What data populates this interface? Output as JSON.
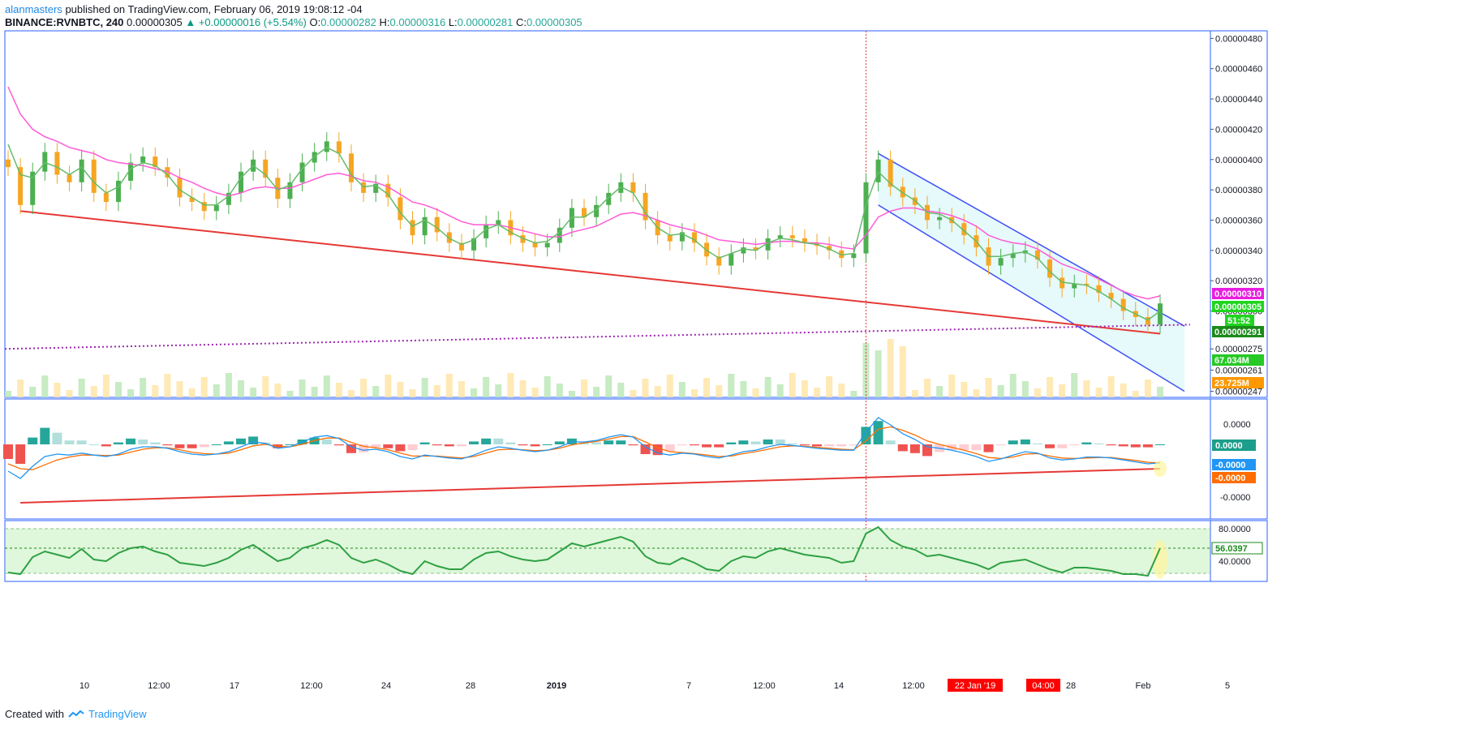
{
  "header": {
    "author": "alanmasters",
    "published_text": "published on TradingView.com, February 06, 2019 19:08:12 -04",
    "symbol": "BINANCE:RVNBTC, 240",
    "last": "0.00000305",
    "change": "▲ +0.00000016 (+5.54%)",
    "o_label": "O:",
    "o_value": "0.00000282",
    "h_label": "H:",
    "h_value": "0.00000316",
    "l_label": "L:",
    "l_value": "0.00000281",
    "c_label": "C:",
    "c_value": "0.00000305"
  },
  "footer": {
    "created_with": "Created with",
    "brand": "TradingView"
  },
  "colors": {
    "up": "#26a69a",
    "up_alt": "#4caf50",
    "down": "#f5a623",
    "ema_fast": "#66bb6a",
    "ema_slow": "#ff5bd6",
    "trendline": "#e53935",
    "channel": "#3f51f5",
    "channel_fill": "#e0f7fa",
    "support_dotted": "#9c27b0",
    "macd": "#2196f3",
    "signal": "#ff6d00",
    "rsi": "#2ea043",
    "rsi_band": "#dff7db"
  },
  "chart_data": [
    {
      "type": "line",
      "pane": "price",
      "title": "",
      "y_ticks": [
        "0.00000480",
        "0.00000460",
        "0.00000440",
        "0.00000420",
        "0.00000400",
        "0.00000380",
        "0.00000360",
        "0.00000340",
        "0.00000320",
        "0.00000300",
        "0.00000275",
        "0.00000261",
        "0.00000247"
      ],
      "x_ticks": [
        "10",
        "12:00",
        "17",
        "12:00",
        "24",
        "28",
        "2019",
        "7",
        "12:00",
        "14",
        "12:00",
        "22 Jan '19",
        "04:00",
        "28",
        "Feb",
        "5"
      ],
      "price_labels": [
        {
          "text": "0.00000310",
          "bg": "#e91ee0"
        },
        {
          "text": "0.00000305",
          "bg": "#1fd41f"
        },
        {
          "text": "51:52",
          "bg": "#1fd41f"
        },
        {
          "text": "0.00000291",
          "bg": "#1b8a1b"
        },
        {
          "text": "67.034M",
          "bg": "#26c926"
        },
        {
          "text": "23.725M",
          "bg": "#ff9800"
        }
      ],
      "ylim": [
        2.43e-06,
        4.85e-06
      ],
      "series": [
        {
          "name": "Close",
          "values": [
            3.95e-06,
            3.7e-06,
            3.92e-06,
            4.05e-06,
            3.9e-06,
            3.85e-06,
            4e-06,
            3.78e-06,
            3.72e-06,
            3.86e-06,
            3.98e-06,
            4.02e-06,
            3.95e-06,
            3.88e-06,
            3.75e-06,
            3.72e-06,
            3.66e-06,
            3.7e-06,
            3.78e-06,
            3.92e-06,
            4e-06,
            3.88e-06,
            3.74e-06,
            3.85e-06,
            3.98e-06,
            4.05e-06,
            4.12e-06,
            4.04e-06,
            3.85e-06,
            3.78e-06,
            3.84e-06,
            3.75e-06,
            3.6e-06,
            3.5e-06,
            3.62e-06,
            3.52e-06,
            3.45e-06,
            3.4e-06,
            3.48e-06,
            3.57e-06,
            3.6e-06,
            3.5e-06,
            3.45e-06,
            3.42e-06,
            3.45e-06,
            3.55e-06,
            3.68e-06,
            3.62e-06,
            3.7e-06,
            3.78e-06,
            3.85e-06,
            3.78e-06,
            3.6e-06,
            3.5e-06,
            3.46e-06,
            3.52e-06,
            3.45e-06,
            3.36e-06,
            3.3e-06,
            3.38e-06,
            3.42e-06,
            3.4e-06,
            3.48e-06,
            3.5e-06,
            3.48e-06,
            3.45e-06,
            3.43e-06,
            3.4e-06,
            3.35e-06,
            3.38e-06,
            3.85e-06,
            4e-06,
            3.82e-06,
            3.75e-06,
            3.7e-06,
            3.6e-06,
            3.62e-06,
            3.58e-06,
            3.5e-06,
            3.42e-06,
            3.3e-06,
            3.35e-06,
            3.38e-06,
            3.4e-06,
            3.34e-06,
            3.22e-06,
            3.15e-06,
            3.18e-06,
            3.17e-06,
            3.12e-06,
            3.08e-06,
            3e-06,
            2.96e-06,
            2.91e-06,
            3.05e-06
          ]
        },
        {
          "name": "EMA fast",
          "values": [
            4.1e-06,
            3.9e-06,
            3.88e-06,
            3.98e-06,
            3.95e-06,
            3.9e-06,
            3.95e-06,
            3.85e-06,
            3.78e-06,
            3.82e-06,
            3.94e-06,
            3.98e-06,
            3.96e-06,
            3.9e-06,
            3.8e-06,
            3.75e-06,
            3.7e-06,
            3.7e-06,
            3.76e-06,
            3.88e-06,
            3.96e-06,
            3.9e-06,
            3.8e-06,
            3.83e-06,
            3.94e-06,
            4.02e-06,
            4.08e-06,
            4.04e-06,
            3.9e-06,
            3.82e-06,
            3.83e-06,
            3.77e-06,
            3.65e-06,
            3.56e-06,
            3.6e-06,
            3.55e-06,
            3.48e-06,
            3.44e-06,
            3.47e-06,
            3.54e-06,
            3.57e-06,
            3.52e-06,
            3.48e-06,
            3.45e-06,
            3.46e-06,
            3.52e-06,
            3.62e-06,
            3.62e-06,
            3.67e-06,
            3.75e-06,
            3.82e-06,
            3.78e-06,
            3.65e-06,
            3.55e-06,
            3.5e-06,
            3.51e-06,
            3.47e-06,
            3.4e-06,
            3.35e-06,
            3.38e-06,
            3.41e-06,
            3.4e-06,
            3.45e-06,
            3.48e-06,
            3.47e-06,
            3.45e-06,
            3.44e-06,
            3.41e-06,
            3.37e-06,
            3.38e-06,
            3.7e-06,
            3.92e-06,
            3.84e-06,
            3.78e-06,
            3.73e-06,
            3.65e-06,
            3.64e-06,
            3.6e-06,
            3.53e-06,
            3.46e-06,
            3.36e-06,
            3.36e-06,
            3.38e-06,
            3.39e-06,
            3.35e-06,
            3.26e-06,
            3.19e-06,
            3.18e-06,
            3.17e-06,
            3.13e-06,
            3.08e-06,
            3.02e-06,
            2.98e-06,
            2.94e-06,
            3e-06
          ]
        },
        {
          "name": "EMA slow",
          "values": [
            4.48e-06,
            4.3e-06,
            4.2e-06,
            4.15e-06,
            4.12e-06,
            4.08e-06,
            4.06e-06,
            4.04e-06,
            4e-06,
            3.98e-06,
            3.97e-06,
            3.96e-06,
            3.94e-06,
            3.92e-06,
            3.88e-06,
            3.85e-06,
            3.81e-06,
            3.78e-06,
            3.76e-06,
            3.78e-06,
            3.81e-06,
            3.82e-06,
            3.81e-06,
            3.81e-06,
            3.84e-06,
            3.87e-06,
            3.9e-06,
            3.91e-06,
            3.89e-06,
            3.86e-06,
            3.85e-06,
            3.82e-06,
            3.77e-06,
            3.72e-06,
            3.7e-06,
            3.67e-06,
            3.63e-06,
            3.59e-06,
            3.57e-06,
            3.57e-06,
            3.57e-06,
            3.55e-06,
            3.53e-06,
            3.51e-06,
            3.49e-06,
            3.49e-06,
            3.52e-06,
            3.54e-06,
            3.56e-06,
            3.6e-06,
            3.64e-06,
            3.65e-06,
            3.63e-06,
            3.6e-06,
            3.57e-06,
            3.55e-06,
            3.53e-06,
            3.5e-06,
            3.47e-06,
            3.46e-06,
            3.45e-06,
            3.44e-06,
            3.45e-06,
            3.46e-06,
            3.46e-06,
            3.45e-06,
            3.45e-06,
            3.44e-06,
            3.42e-06,
            3.41e-06,
            3.5e-06,
            3.62e-06,
            3.66e-06,
            3.68e-06,
            3.68e-06,
            3.66e-06,
            3.65e-06,
            3.63e-06,
            3.6e-06,
            3.56e-06,
            3.5e-06,
            3.47e-06,
            3.45e-06,
            3.44e-06,
            3.41e-06,
            3.36e-06,
            3.31e-06,
            3.28e-06,
            3.25e-06,
            3.21e-06,
            3.17e-06,
            3.13e-06,
            3.1e-06,
            3.08e-06,
            3.1e-06
          ]
        }
      ]
    },
    {
      "type": "line",
      "pane": "macd",
      "title": "",
      "y_ticks": [
        "0.0000",
        "-0.0000"
      ],
      "price_labels": [
        {
          "text": "0.0000",
          "bg": "#1b9e8a"
        },
        {
          "text": "-0.0000",
          "bg": "#2196f3"
        },
        {
          "text": "-0.0000",
          "bg": "#ff6d00"
        }
      ],
      "ylim": [
        -1,
        1
      ],
      "series": [
        {
          "name": "MACD",
          "values": [
            -0.55,
            -0.7,
            -0.45,
            -0.25,
            -0.2,
            -0.22,
            -0.18,
            -0.22,
            -0.25,
            -0.2,
            -0.1,
            -0.05,
            -0.05,
            -0.08,
            -0.15,
            -0.2,
            -0.22,
            -0.2,
            -0.15,
            -0.05,
            0.05,
            0.02,
            -0.08,
            -0.05,
            0.05,
            0.15,
            0.18,
            0.12,
            -0.05,
            -0.12,
            -0.1,
            -0.15,
            -0.25,
            -0.3,
            -0.22,
            -0.25,
            -0.28,
            -0.3,
            -0.22,
            -0.12,
            -0.05,
            -0.08,
            -0.12,
            -0.15,
            -0.12,
            -0.05,
            0.05,
            0.05,
            0.08,
            0.15,
            0.2,
            0.15,
            -0.05,
            -0.18,
            -0.22,
            -0.18,
            -0.2,
            -0.25,
            -0.28,
            -0.22,
            -0.15,
            -0.12,
            -0.05,
            0.0,
            -0.02,
            -0.05,
            -0.08,
            -0.1,
            -0.12,
            -0.12,
            0.25,
            0.55,
            0.4,
            0.22,
            0.1,
            -0.05,
            -0.08,
            -0.12,
            -0.18,
            -0.25,
            -0.35,
            -0.3,
            -0.22,
            -0.15,
            -0.18,
            -0.28,
            -0.32,
            -0.3,
            -0.26,
            -0.26,
            -0.28,
            -0.32,
            -0.36,
            -0.4,
            -0.38
          ]
        },
        {
          "name": "Signal",
          "values": [
            -0.4,
            -0.5,
            -0.52,
            -0.42,
            -0.32,
            -0.26,
            -0.22,
            -0.22,
            -0.23,
            -0.22,
            -0.16,
            -0.1,
            -0.07,
            -0.07,
            -0.11,
            -0.16,
            -0.19,
            -0.2,
            -0.18,
            -0.11,
            -0.03,
            0.0,
            -0.04,
            -0.05,
            0.0,
            0.08,
            0.13,
            0.13,
            0.04,
            -0.04,
            -0.07,
            -0.11,
            -0.18,
            -0.24,
            -0.24,
            -0.24,
            -0.26,
            -0.28,
            -0.25,
            -0.18,
            -0.11,
            -0.1,
            -0.11,
            -0.13,
            -0.12,
            -0.08,
            -0.01,
            0.03,
            0.06,
            0.11,
            0.16,
            0.16,
            0.05,
            -0.07,
            -0.15,
            -0.17,
            -0.19,
            -0.22,
            -0.25,
            -0.24,
            -0.19,
            -0.15,
            -0.1,
            -0.05,
            -0.03,
            -0.04,
            -0.06,
            -0.08,
            -0.1,
            -0.11,
            0.07,
            0.31,
            0.36,
            0.29,
            0.19,
            0.07,
            0.0,
            -0.06,
            -0.12,
            -0.19,
            -0.27,
            -0.29,
            -0.26,
            -0.2,
            -0.19,
            -0.24,
            -0.28,
            -0.29,
            -0.28,
            -0.27,
            -0.27,
            -0.3,
            -0.33,
            -0.37,
            -0.38
          ]
        }
      ]
    },
    {
      "type": "line",
      "pane": "rsi",
      "title": "",
      "y_ticks": [
        "80.0000",
        "40.0000"
      ],
      "price_labels": [
        {
          "text": "56.0397",
          "bg": "#ffffff"
        }
      ],
      "ylim": [
        15,
        90
      ],
      "series": [
        {
          "name": "RSI",
          "values": [
            26,
            24,
            45,
            52,
            48,
            44,
            55,
            42,
            40,
            50,
            56,
            58,
            52,
            48,
            38,
            36,
            34,
            38,
            44,
            54,
            60,
            50,
            40,
            44,
            56,
            60,
            66,
            60,
            44,
            38,
            42,
            36,
            28,
            24,
            40,
            34,
            30,
            30,
            42,
            50,
            52,
            46,
            42,
            40,
            42,
            52,
            62,
            58,
            62,
            66,
            70,
            64,
            46,
            38,
            36,
            44,
            38,
            30,
            28,
            40,
            46,
            44,
            52,
            56,
            52,
            48,
            46,
            44,
            38,
            40,
            74,
            82,
            66,
            58,
            54,
            46,
            48,
            44,
            40,
            36,
            30,
            38,
            40,
            42,
            36,
            30,
            26,
            32,
            32,
            30,
            28,
            24,
            24,
            22,
            56
          ]
        }
      ]
    }
  ]
}
